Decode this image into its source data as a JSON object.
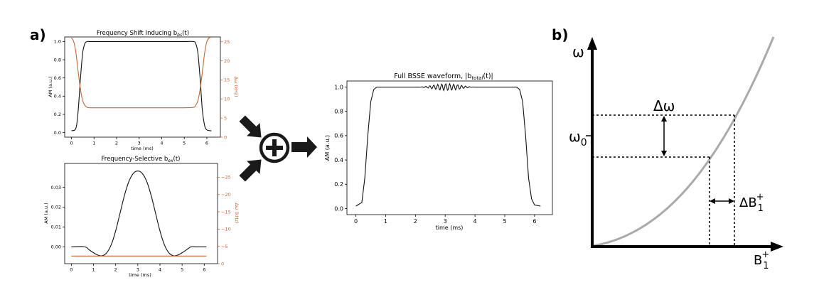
{
  "panel_labels": {
    "a": "a)",
    "b": "b)"
  },
  "colors": {
    "am": "#111111",
    "freq": "#c8653a",
    "curve": "#aaaaaa",
    "axis": "#000000"
  },
  "operator_symbol": "⊕",
  "chart_data": [
    {
      "type": "line",
      "title": "Frequency Shift Inducing b",
      "title_sub": "bs",
      "title_suffix": "(t)",
      "xlabel": "time (ms)",
      "ylabel": "AM (a.u.)",
      "ylabel_right": "Δω (kHz)",
      "xlim": [
        -0.3,
        6.6
      ],
      "ylim": [
        -0.05,
        1.05
      ],
      "ylim_right": [
        0,
        26.25
      ],
      "x_ticks": [
        "0",
        "1",
        "2",
        "3",
        "4",
        "5",
        "6"
      ],
      "y_ticks": [
        "0.0",
        "0.2",
        "0.4",
        "0.6",
        "0.8",
        "1.0"
      ],
      "y_ticks_right": [
        "0",
        "5",
        "10",
        "15",
        "20",
        "25"
      ],
      "series": [
        {
          "axis": "left",
          "x": [
            0,
            0.2,
            0.3,
            0.4,
            0.5,
            0.6,
            0.7,
            0.8,
            1,
            2,
            3,
            4,
            5,
            5.4,
            5.5,
            5.6,
            5.7,
            5.8,
            5.9,
            6.0,
            6.2
          ],
          "y": [
            0.02,
            0.05,
            0.25,
            0.6,
            0.88,
            0.98,
            1.0,
            1.0,
            1.0,
            1.0,
            1.0,
            1.0,
            1.0,
            1.0,
            0.98,
            0.88,
            0.6,
            0.25,
            0.08,
            0.03,
            0.02
          ]
        },
        {
          "axis": "right",
          "x": [
            0,
            0.1,
            0.2,
            0.3,
            0.4,
            0.5,
            0.6,
            0.7,
            0.8,
            1,
            2,
            3,
            4,
            5,
            5.4,
            5.5,
            5.6,
            5.7,
            5.8,
            5.9,
            6.0,
            6.1,
            6.2
          ],
          "y": [
            26,
            25,
            22,
            17,
            12.5,
            9.5,
            8.3,
            7.8,
            7.7,
            7.7,
            7.7,
            7.7,
            7.7,
            7.7,
            7.8,
            8.3,
            9.5,
            12.5,
            17,
            22,
            25,
            26,
            26.2
          ]
        }
      ]
    },
    {
      "type": "line",
      "title": "Frequency-Selective b",
      "title_sub": "ex",
      "title_suffix": "(t)",
      "xlabel": "time (ms)",
      "ylabel": "AM (a.u.)",
      "ylabel_right": "Δω (kHz)",
      "xlim": [
        -0.3,
        6.6
      ],
      "ylim": [
        -0.0085,
        0.042
      ],
      "ylim_right": [
        0,
        -29
      ],
      "x_ticks": [
        "0",
        "1",
        "2",
        "3",
        "4",
        "5",
        "6"
      ],
      "y_ticks": [
        "0.00",
        "0.01",
        "0.02",
        "0.03"
      ],
      "y_ticks_right": [
        "0",
        "−5",
        "−10",
        "−15",
        "−20",
        "−25"
      ],
      "series": [
        {
          "axis": "left",
          "x": [
            0,
            0.6,
            0.8,
            1.0,
            1.2,
            1.4,
            1.6,
            1.8,
            2.0,
            2.2,
            2.4,
            2.6,
            2.8,
            3.0,
            3.2,
            3.4,
            3.6,
            3.8,
            4.0,
            4.2,
            4.4,
            4.6,
            4.8,
            5.0,
            5.2,
            5.4,
            5.6,
            6.1
          ],
          "y": [
            0,
            0,
            -0.0015,
            -0.003,
            -0.0042,
            -0.0045,
            -0.003,
            0.001,
            0.008,
            0.017,
            0.026,
            0.033,
            0.037,
            0.0382,
            0.037,
            0.033,
            0.026,
            0.017,
            0.008,
            0.001,
            -0.003,
            -0.0045,
            -0.0042,
            -0.003,
            -0.0015,
            0,
            0,
            0
          ]
        },
        {
          "axis": "right",
          "x": [
            0,
            6.1
          ],
          "y": [
            -2.2,
            -2.2
          ]
        }
      ]
    },
    {
      "type": "line",
      "title": "Full BSSE waveform, |b",
      "title_sub": "total",
      "title_suffix": "(t)|",
      "xlabel": "time (ms)",
      "ylabel": "AM (a.u.)",
      "xlim": [
        -0.3,
        6.6
      ],
      "ylim": [
        -0.05,
        1.05
      ],
      "x_ticks": [
        "0",
        "1",
        "2",
        "3",
        "4",
        "5",
        "6"
      ],
      "y_ticks": [
        "0.0",
        "0.2",
        "0.4",
        "0.6",
        "0.8",
        "1.0"
      ],
      "series": [
        {
          "axis": "left",
          "x": [
            0,
            0.2,
            0.3,
            0.4,
            0.5,
            0.6,
            0.7,
            0.8,
            1,
            2,
            3,
            4,
            5,
            5.4,
            5.5,
            5.6,
            5.7,
            5.8,
            5.9,
            6.0,
            6.2
          ],
          "y": [
            0.02,
            0.05,
            0.25,
            0.6,
            0.88,
            0.98,
            1.0,
            1.0,
            1.0,
            1.0,
            1.0,
            1.0,
            1.0,
            1.0,
            0.98,
            0.88,
            0.6,
            0.25,
            0.08,
            0.03,
            0.02
          ],
          "ripple": {
            "center": 3.05,
            "width": 2.0,
            "amp": 0.028,
            "cycles": 15
          }
        }
      ]
    }
  ],
  "diagram_b": {
    "y_axis_label": "ω",
    "x_axis_label": "B",
    "x_axis_label_sub": "1",
    "x_axis_label_sup": "+",
    "delta_omega": "Δω",
    "omega0": "ω",
    "omega0_sub": "0",
    "delta_b": "ΔB",
    "delta_b_sub": "1",
    "delta_b_sup": "+"
  }
}
